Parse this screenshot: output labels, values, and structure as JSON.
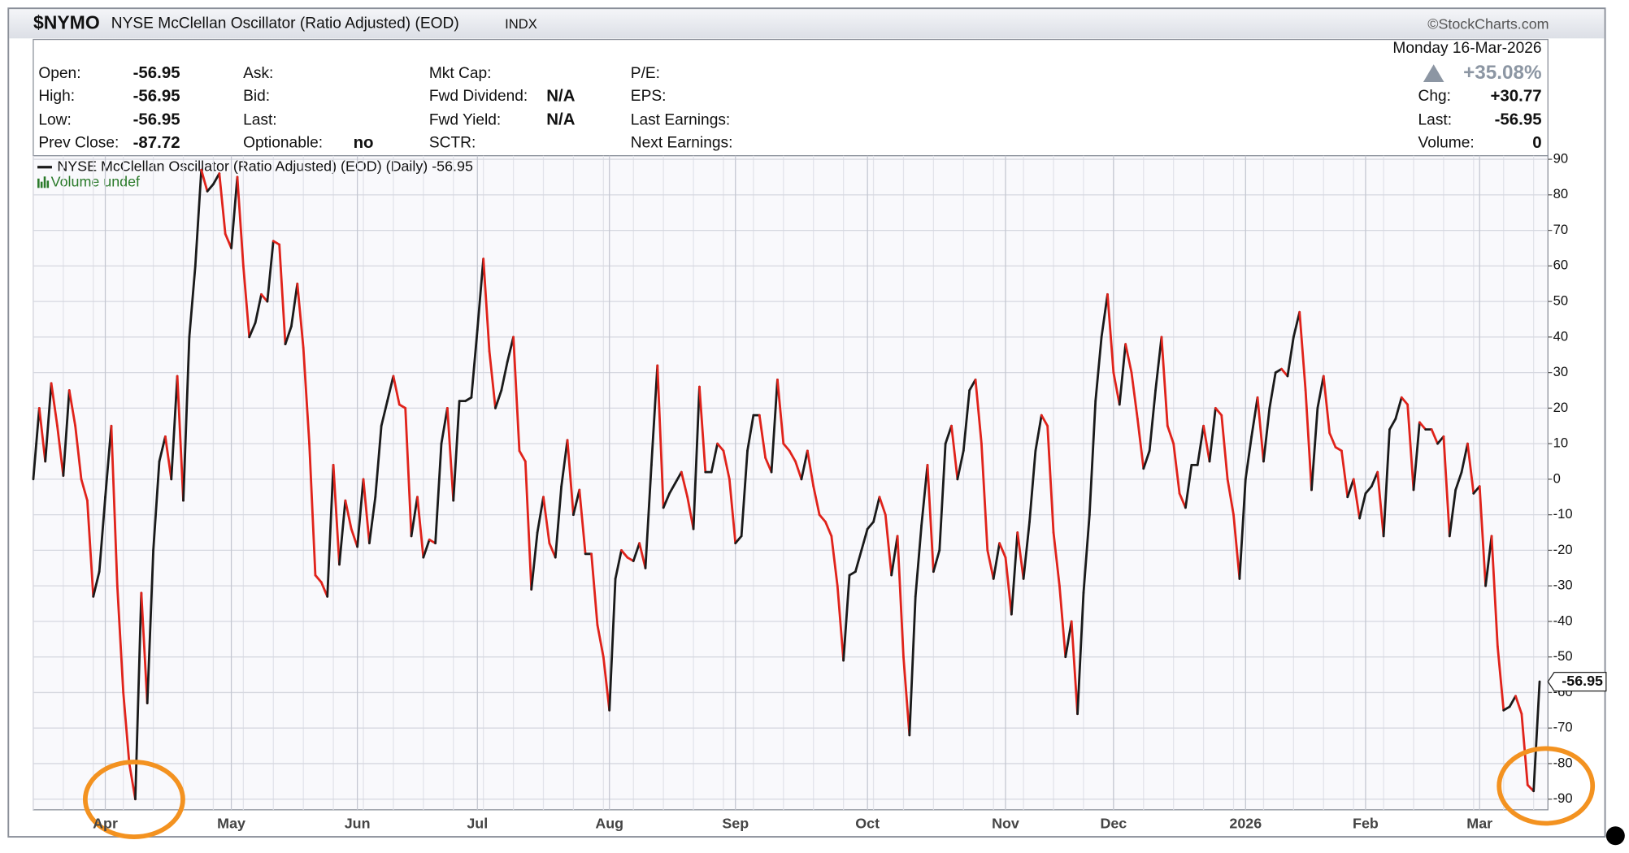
{
  "header": {
    "symbol": "$NYMO",
    "name": "NYSE McClellan Oscillator (Ratio Adjusted) (EOD)",
    "exchange": "INDX",
    "source": "©StockCharts.com",
    "date": "Monday  16-Mar-2026",
    "change_pct": "+35.08%",
    "columns": [
      [
        {
          "label": "Open:",
          "value": "-56.95"
        },
        {
          "label": "High:",
          "value": "-56.95"
        },
        {
          "label": "Low:",
          "value": "-56.95"
        },
        {
          "label": "Prev Close:",
          "value": "-87.72"
        }
      ],
      [
        {
          "label": "Ask:"
        },
        {
          "label": "Bid:"
        },
        {
          "label": "Last:"
        },
        {
          "label": "Optionable:",
          "value": "no"
        }
      ],
      [
        {
          "label": "Mkt Cap:"
        },
        {
          "label": "Fwd Dividend:",
          "value": "N/A"
        },
        {
          "label": "Fwd Yield:",
          "value": "N/A"
        },
        {
          "label": "SCTR:"
        }
      ],
      [
        {
          "label": "P/E:"
        },
        {
          "label": "EPS:"
        },
        {
          "label": "Last Earnings:"
        },
        {
          "label": "Next Earnings:"
        }
      ]
    ],
    "right": [
      {
        "label": "Chg:",
        "value": "+30.77"
      },
      {
        "label": "Last:",
        "value": "-56.95"
      },
      {
        "label": "Volume:",
        "value": "0"
      }
    ]
  },
  "chart_data": {
    "type": "line",
    "categories": [
      null,
      null,
      null,
      null,
      null,
      null,
      null,
      null,
      null,
      null,
      null,
      null,
      "Apr",
      null,
      null,
      null,
      null,
      null,
      null,
      null,
      null,
      null,
      null,
      null,
      null,
      null,
      null,
      null,
      null,
      null,
      null,
      null,
      null,
      "May",
      null,
      null,
      null,
      null,
      null,
      null,
      null,
      null,
      null,
      null,
      null,
      null,
      null,
      null,
      null,
      null,
      null,
      null,
      null,
      null,
      "Jun",
      null,
      null,
      null,
      null,
      null,
      null,
      null,
      null,
      null,
      null,
      null,
      null,
      null,
      null,
      null,
      null,
      null,
      null,
      null,
      "Jul",
      null,
      null,
      null,
      null,
      null,
      null,
      null,
      null,
      null,
      null,
      null,
      null,
      null,
      null,
      null,
      null,
      null,
      null,
      null,
      null,
      null,
      "Aug",
      null,
      null,
      null,
      null,
      null,
      null,
      null,
      null,
      null,
      null,
      null,
      null,
      null,
      null,
      null,
      null,
      null,
      null,
      null,
      null,
      "Sep",
      null,
      null,
      null,
      null,
      null,
      null,
      null,
      null,
      null,
      null,
      null,
      null,
      null,
      null,
      null,
      null,
      null,
      null,
      null,
      null,
      null,
      "Oct",
      null,
      null,
      null,
      null,
      null,
      null,
      null,
      null,
      null,
      null,
      null,
      null,
      null,
      null,
      null,
      null,
      null,
      null,
      null,
      null,
      null,
      null,
      "Nov",
      null,
      null,
      null,
      null,
      null,
      null,
      null,
      null,
      null,
      null,
      null,
      null,
      null,
      null,
      null,
      null,
      null,
      "Dec",
      null,
      null,
      null,
      null,
      null,
      null,
      null,
      null,
      null,
      null,
      null,
      null,
      null,
      null,
      null,
      null,
      null,
      null,
      null,
      null,
      null,
      "2026",
      null,
      null,
      null,
      null,
      null,
      null,
      null,
      null,
      null,
      null,
      null,
      null,
      null,
      null,
      null,
      null,
      null,
      null,
      null,
      "Feb",
      null,
      null,
      null,
      null,
      null,
      null,
      null,
      null,
      null,
      null,
      null,
      null,
      null,
      null,
      null,
      null,
      null,
      null,
      "Mar",
      null,
      null,
      null,
      null,
      null,
      null,
      null,
      null,
      null,
      null
    ],
    "series": [
      {
        "name": "NYSE McClellan Oscillator (Ratio Adjusted) (EOD) (Daily) -56.95",
        "color": "#1a1a1a",
        "down_color": "#e0231b",
        "values": [
          0,
          20,
          5,
          27,
          15,
          1,
          25,
          15,
          0,
          -6,
          -33,
          -26,
          -5,
          15,
          -30,
          -60,
          -80,
          -90,
          -32,
          -63,
          -20,
          5,
          12,
          0,
          29,
          -6,
          40,
          60,
          87,
          81,
          83,
          86,
          69,
          65,
          85,
          60,
          40,
          44,
          52,
          50,
          67,
          66,
          38,
          43,
          55,
          37,
          10,
          -27,
          -29,
          -33,
          4,
          -24,
          -6,
          -14,
          -19,
          0,
          -18,
          -5,
          15,
          22,
          29,
          21,
          20,
          -16,
          -5,
          -22,
          -17,
          -18,
          10,
          20,
          -6,
          22,
          22,
          23,
          42,
          62,
          36,
          20,
          25,
          33,
          40,
          8,
          5,
          -31,
          -15,
          -5,
          -18,
          -22,
          -2,
          11,
          -10,
          -3,
          -21,
          -21,
          -41,
          -50,
          -65,
          -28,
          -20,
          -22,
          -23,
          -18,
          -25,
          4,
          32,
          -8,
          -4,
          -1,
          2,
          -5,
          -14,
          26,
          2,
          2,
          10,
          8,
          0,
          -18,
          -16,
          8,
          18,
          18,
          6,
          2,
          28,
          10,
          8,
          5,
          0,
          8,
          -2,
          -10,
          -12,
          -16,
          -30,
          -51,
          -27,
          -26,
          -20,
          -14,
          -12,
          -5,
          -10,
          -27,
          -16,
          -50,
          -72,
          -33,
          -13,
          4,
          -26,
          -20,
          10,
          15,
          0,
          8,
          25,
          28,
          10,
          -20,
          -28,
          -18,
          -22,
          -38,
          -15,
          -28,
          -12,
          8,
          18,
          15,
          -15,
          -30,
          -50,
          -40,
          -66,
          -32,
          -10,
          22,
          40,
          52,
          30,
          21,
          38,
          30,
          17,
          3,
          8,
          25,
          40,
          15,
          10,
          -4,
          -8,
          4,
          4,
          15,
          5,
          20,
          18,
          0,
          -10,
          -28,
          0,
          12,
          23,
          5,
          20,
          30,
          31,
          29,
          40,
          47,
          25,
          -3,
          20,
          29,
          13,
          9,
          8,
          -5,
          0,
          -11,
          -4,
          -2,
          2,
          -16,
          14,
          17,
          23,
          21,
          -3,
          16,
          14,
          14,
          10,
          12,
          -16,
          -3,
          2,
          10,
          -4,
          -2,
          -30,
          -16,
          -47,
          -65,
          -64,
          -61,
          -66,
          -86,
          -87.72,
          -56.95
        ]
      }
    ],
    "volume_legend": "Volume undef",
    "ylim": [
      -93,
      91
    ],
    "yticks": [
      -90,
      -80,
      -70,
      -60,
      -50,
      -40,
      -30,
      -20,
      -10,
      0,
      10,
      20,
      30,
      40,
      50,
      60,
      70,
      80,
      90
    ],
    "grid": true
  }
}
